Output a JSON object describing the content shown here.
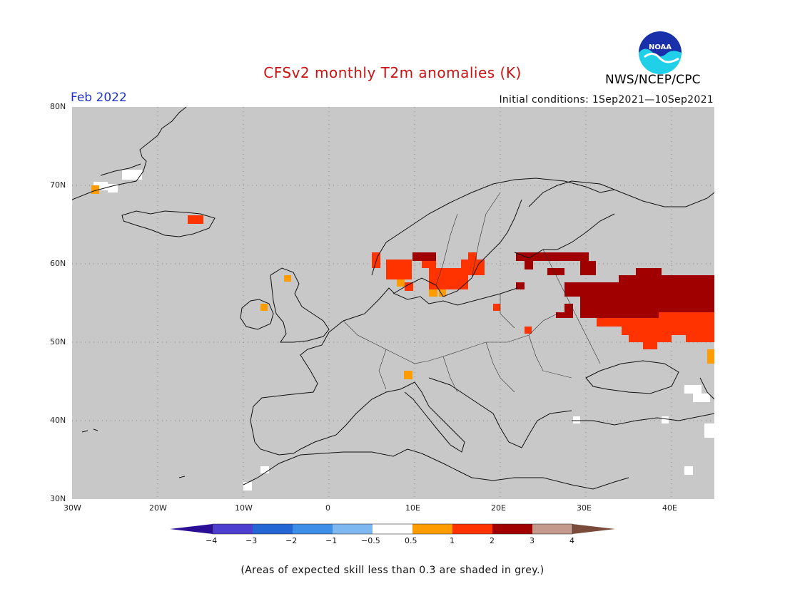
{
  "header": {
    "title": "CFSv2 monthly T2m anomalies (K)",
    "period": "Feb 2022",
    "initial_conditions": "Initial conditions: 1Sep2021—10Sep2021",
    "agency": "NWS/NCEP/CPC",
    "logo_text": "NOAA",
    "logo_icon": "noaa-logo-icon"
  },
  "map": {
    "region": "Europe",
    "lon_range": [
      -30,
      45
    ],
    "lat_range": [
      30,
      80
    ],
    "lat_labels": [
      "80N",
      "70N",
      "60N",
      "50N",
      "40N",
      "30N"
    ],
    "lon_labels": [
      "30W",
      "20W",
      "10W",
      "0",
      "10E",
      "20E",
      "30E",
      "40E"
    ],
    "background_color": "#c8c8c8",
    "grid": true
  },
  "colorbar": {
    "levels": [
      -4,
      -3,
      -2,
      -1,
      -0.5,
      0.5,
      1,
      2,
      3,
      4
    ],
    "labels": [
      "−4",
      "−3",
      "−2",
      "−1",
      "−0.5",
      "0.5",
      "1",
      "2",
      "3",
      "4"
    ],
    "colors": [
      "#2a0e95",
      "#4d3ed0",
      "#2466d4",
      "#3f8fe8",
      "#7db8f0",
      "#ffffff",
      "#ff9d00",
      "#ff3300",
      "#a00000",
      "#c49a8c",
      "#7a4a3a"
    ]
  },
  "footnote": "(Areas of expected skill less than 0.3 are shaded in grey.)"
}
